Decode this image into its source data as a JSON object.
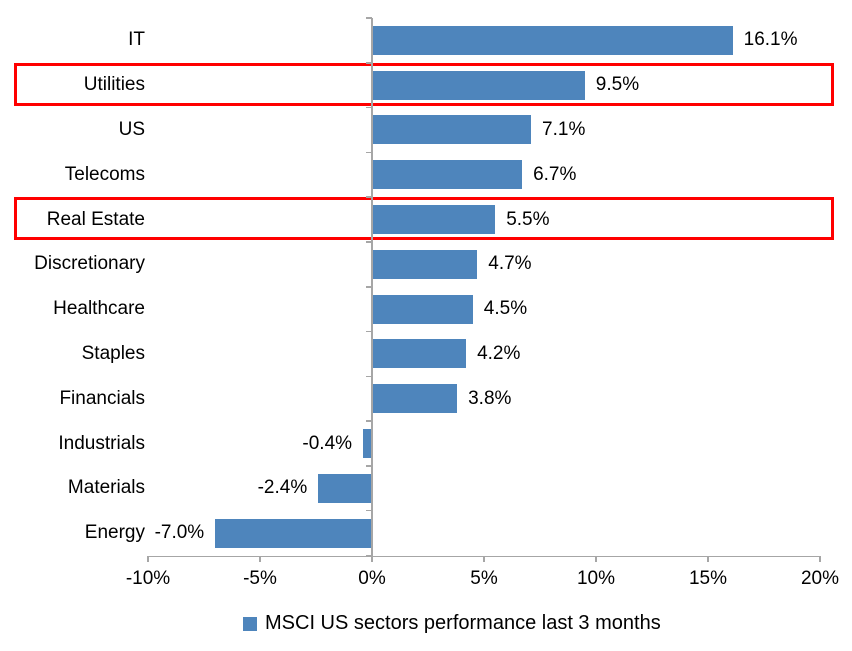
{
  "chart_data": {
    "type": "bar",
    "orientation": "horizontal",
    "title": "",
    "xlabel": "",
    "ylabel": "",
    "categories": [
      "IT",
      "Utilities",
      "US",
      "Telecoms",
      "Real Estate",
      "Discretionary",
      "Healthcare",
      "Staples",
      "Financials",
      "Industrials",
      "Materials",
      "Energy"
    ],
    "values": [
      16.1,
      9.5,
      7.1,
      6.7,
      5.5,
      4.7,
      4.5,
      4.2,
      3.8,
      -0.4,
      -2.4,
      -7.0
    ],
    "data_labels": [
      "16.1%",
      "9.5%",
      "7.1%",
      "6.7%",
      "5.5%",
      "4.7%",
      "4.5%",
      "4.2%",
      "3.8%",
      "-0.4%",
      "-2.4%",
      "-7.0%"
    ],
    "highlighted_categories": [
      "Utilities",
      "Real Estate"
    ],
    "x_ticks": [
      {
        "value": -10,
        "label": "-10%"
      },
      {
        "value": -5,
        "label": "-5%"
      },
      {
        "value": 0,
        "label": "0%"
      },
      {
        "value": 5,
        "label": "5%"
      },
      {
        "value": 10,
        "label": "10%"
      },
      {
        "value": 15,
        "label": "15%"
      },
      {
        "value": 20,
        "label": "20%"
      }
    ],
    "xlim": [
      -10,
      20
    ],
    "grid": false,
    "legend_position": "bottom",
    "legend": {
      "label": "MSCI US sectors performance last 3 months"
    },
    "colors": {
      "bar": "#4e85bc",
      "highlight_border": "#ff0000",
      "axis": "#a6a6a6",
      "text": "#000000"
    }
  }
}
